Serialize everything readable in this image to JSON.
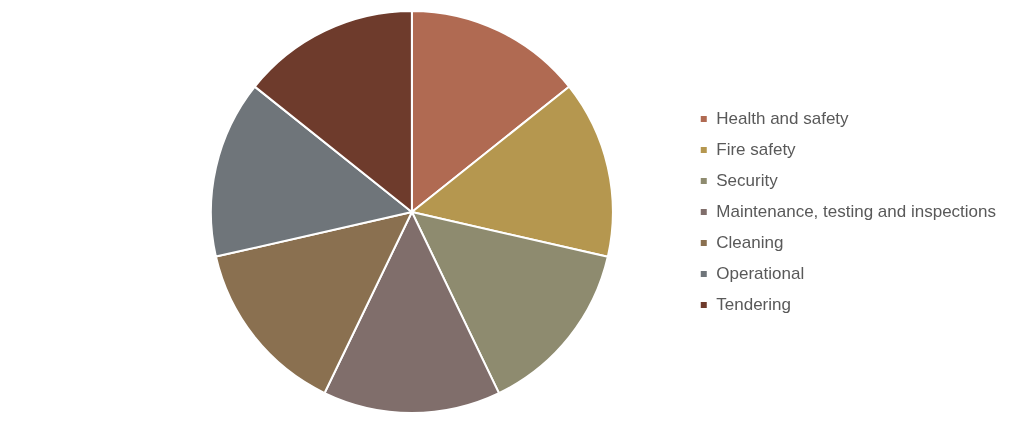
{
  "chart_data": {
    "type": "pie",
    "categories": [
      "Health and safety",
      "Fire safety",
      "Security",
      "Maintenance, testing and inspections",
      "Cleaning",
      "Operational",
      "Tendering"
    ],
    "values": [
      14.29,
      14.29,
      14.29,
      14.28,
      14.29,
      14.28,
      14.28
    ],
    "colors": [
      "#b06a52",
      "#b5974f",
      "#8e8b6f",
      "#806e6b",
      "#8a7050",
      "#6f757a",
      "#6e3b2c"
    ],
    "legend": "right"
  }
}
